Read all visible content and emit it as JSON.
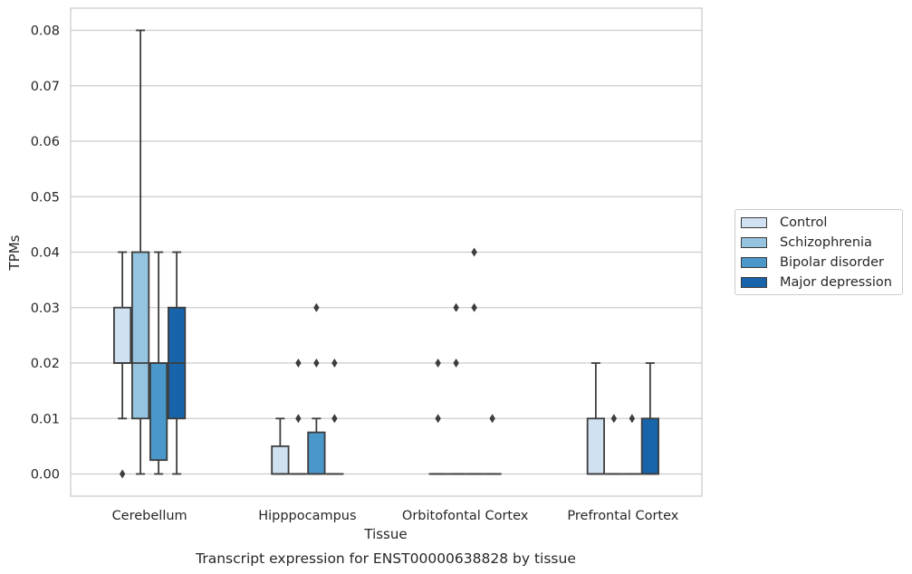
{
  "chart_data": {
    "type": "box",
    "title": "Transcript expression for ENST00000638828 by tissue",
    "xlabel": "Tissue",
    "ylabel": "TPMs",
    "ylim": [
      -0.004,
      0.084
    ],
    "yticks": [
      "0.00",
      "0.01",
      "0.02",
      "0.03",
      "0.04",
      "0.05",
      "0.06",
      "0.07",
      "0.08"
    ],
    "grid": true,
    "legend_position": "right",
    "categories": [
      "Cerebellum",
      "Hipppocampus",
      "Orbitofontal Cortex",
      "Prefrontal Cortex"
    ],
    "series": [
      {
        "name": "Control",
        "color": "#d0e1f2",
        "boxes": [
          {
            "q1": 0.02,
            "median": 0.02,
            "q3": 0.03,
            "whisker_low": 0.01,
            "whisker_high": 0.04,
            "outliers": [
              0.0
            ]
          },
          {
            "q1": 0.0,
            "median": 0.0,
            "q3": 0.005,
            "whisker_low": 0.0,
            "whisker_high": 0.01,
            "outliers": []
          },
          {
            "q1": 0.0,
            "median": 0.0,
            "q3": 0.0,
            "whisker_low": 0.0,
            "whisker_high": 0.0,
            "outliers": [
              0.01,
              0.02
            ]
          },
          {
            "q1": 0.0,
            "median": 0.0,
            "q3": 0.01,
            "whisker_low": 0.0,
            "whisker_high": 0.02,
            "outliers": []
          }
        ]
      },
      {
        "name": "Schizophrenia",
        "color": "#94c4df",
        "boxes": [
          {
            "q1": 0.01,
            "median": 0.02,
            "q3": 0.04,
            "whisker_low": 0.0,
            "whisker_high": 0.08,
            "outliers": []
          },
          {
            "q1": 0.0,
            "median": 0.0,
            "q3": 0.0,
            "whisker_low": 0.0,
            "whisker_high": 0.0,
            "outliers": [
              0.01,
              0.02
            ]
          },
          {
            "q1": 0.0,
            "median": 0.0,
            "q3": 0.0,
            "whisker_low": 0.0,
            "whisker_high": 0.0,
            "outliers": [
              0.02,
              0.03
            ]
          },
          {
            "q1": 0.0,
            "median": 0.0,
            "q3": 0.0,
            "whisker_low": 0.0,
            "whisker_high": 0.0,
            "outliers": [
              0.01
            ]
          }
        ]
      },
      {
        "name": "Bipolar disorder",
        "color": "#4a98c9",
        "boxes": [
          {
            "q1": 0.0025,
            "median": 0.02,
            "q3": 0.02,
            "whisker_low": 0.0,
            "whisker_high": 0.04,
            "outliers": []
          },
          {
            "q1": 0.0,
            "median": 0.0,
            "q3": 0.0075,
            "whisker_low": 0.0,
            "whisker_high": 0.01,
            "outliers": [
              0.02,
              0.03
            ]
          },
          {
            "q1": 0.0,
            "median": 0.0,
            "q3": 0.0,
            "whisker_low": 0.0,
            "whisker_high": 0.0,
            "outliers": [
              0.03,
              0.04
            ]
          },
          {
            "q1": 0.0,
            "median": 0.0,
            "q3": 0.0,
            "whisker_low": 0.0,
            "whisker_high": 0.0,
            "outliers": [
              0.01
            ]
          }
        ]
      },
      {
        "name": "Major depression",
        "color": "#1764ab",
        "boxes": [
          {
            "q1": 0.01,
            "median": 0.02,
            "q3": 0.03,
            "whisker_low": 0.0,
            "whisker_high": 0.04,
            "outliers": []
          },
          {
            "q1": 0.0,
            "median": 0.0,
            "q3": 0.0,
            "whisker_low": 0.0,
            "whisker_high": 0.0,
            "outliers": [
              0.01,
              0.02
            ]
          },
          {
            "q1": 0.0,
            "median": 0.0,
            "q3": 0.0,
            "whisker_low": 0.0,
            "whisker_high": 0.0,
            "outliers": [
              0.01
            ]
          },
          {
            "q1": 0.0,
            "median": 0.0,
            "q3": 0.01,
            "whisker_low": 0.0,
            "whisker_high": 0.02,
            "outliers": []
          }
        ]
      }
    ]
  }
}
